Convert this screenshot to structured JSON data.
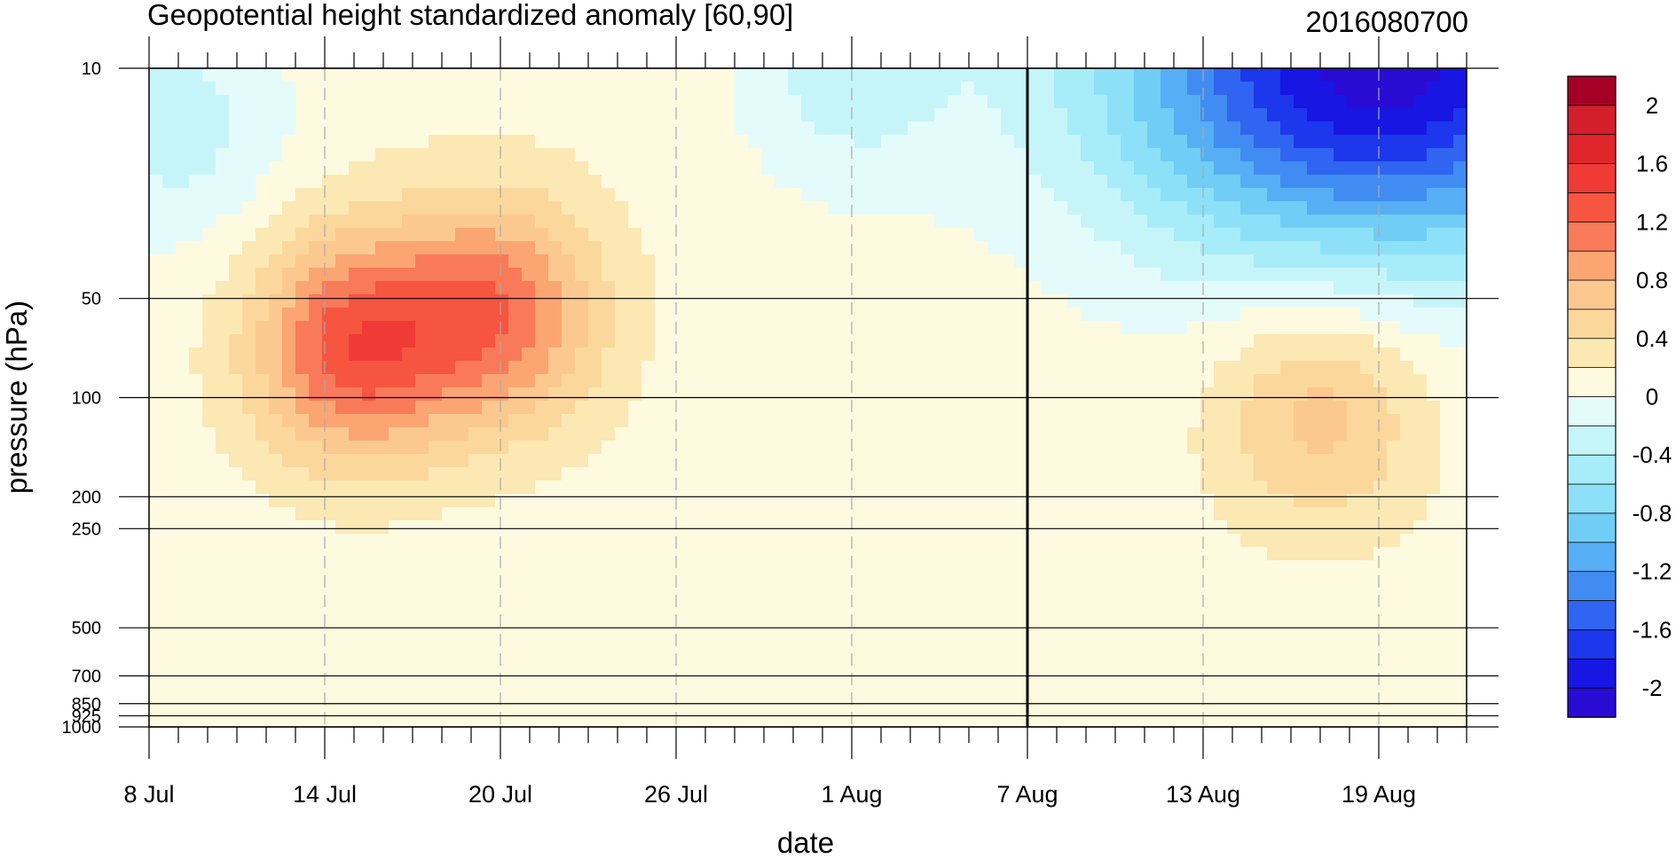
{
  "chart_data": {
    "type": "heatmap",
    "title_left": "Geopotential height standardized anomaly [60,90]",
    "title_right": "2016080700",
    "xlabel": "date",
    "ylabel": "pressure (hPa)",
    "x_ticks": [
      "8 Jul",
      "14 Jul",
      "20 Jul",
      "26 Jul",
      "1 Aug",
      "7 Aug",
      "13 Aug",
      "19 Aug"
    ],
    "x_range": [
      "2016-07-08",
      "2016-08-22"
    ],
    "y_scale": "log",
    "y_range": [
      1000,
      10
    ],
    "y_ticks": [
      10,
      50,
      100,
      200,
      250,
      500,
      700,
      850,
      925,
      1000
    ],
    "y_tick_labels": [
      "10",
      "50",
      "100",
      "200",
      "250",
      "500",
      "700",
      "850",
      "925",
      "1000"
    ],
    "analysis_date_line": "7 Aug",
    "colorbar": {
      "levels": [
        -2.2,
        -2.0,
        -1.8,
        -1.6,
        -1.4,
        -1.2,
        -1.0,
        -0.8,
        -0.6,
        -0.4,
        -0.2,
        0,
        0.2,
        0.4,
        0.6,
        0.8,
        1.0,
        1.2,
        1.4,
        1.6,
        1.8,
        2.0,
        2.2
      ],
      "labels": [
        "2",
        "1.6",
        "1.2",
        "0.8",
        "0.4",
        "0",
        "-0.4",
        "-0.8",
        "-1.2",
        "-1.6",
        "-2"
      ],
      "label_values": [
        2,
        1.6,
        1.2,
        0.8,
        0.4,
        0,
        -0.4,
        -0.8,
        -1.2,
        -1.6,
        -2
      ],
      "colors_top_to_bottom": [
        "#a50026",
        "#d31f2c",
        "#e0262b",
        "#f03a36",
        "#f6553f",
        "#f97a58",
        "#fba573",
        "#fbc98f",
        "#fcd79b",
        "#fce8b3",
        "#fefae0",
        "#e4fbfb",
        "#c6f5f9",
        "#a7ecf9",
        "#8ce1f8",
        "#70cdf5",
        "#56aef5",
        "#418cf2",
        "#2f65f0",
        "#1c37ec",
        "#1716e3",
        "#2a0bd4"
      ]
    },
    "features": [
      {
        "kind": "max",
        "x": "2016-07-15",
        "y": 70,
        "value": 1.2
      },
      {
        "kind": "max",
        "x": "2016-07-20",
        "y": 55,
        "value": 1.0
      },
      {
        "kind": "max",
        "x": "2016-08-17",
        "y": 110,
        "value": 0.6
      },
      {
        "kind": "min",
        "x": "2016-08-19",
        "y": 10,
        "value": -2.2
      },
      {
        "kind": "min",
        "x": "2016-08-01",
        "y": 10,
        "value": -0.4
      },
      {
        "kind": "min",
        "x": "2016-07-09",
        "y": 15,
        "value": -0.4
      }
    ],
    "colors": {
      "line_color": "#000000",
      "grid_dash_color": "#aaaaaa",
      "background": "#ffffff"
    }
  }
}
